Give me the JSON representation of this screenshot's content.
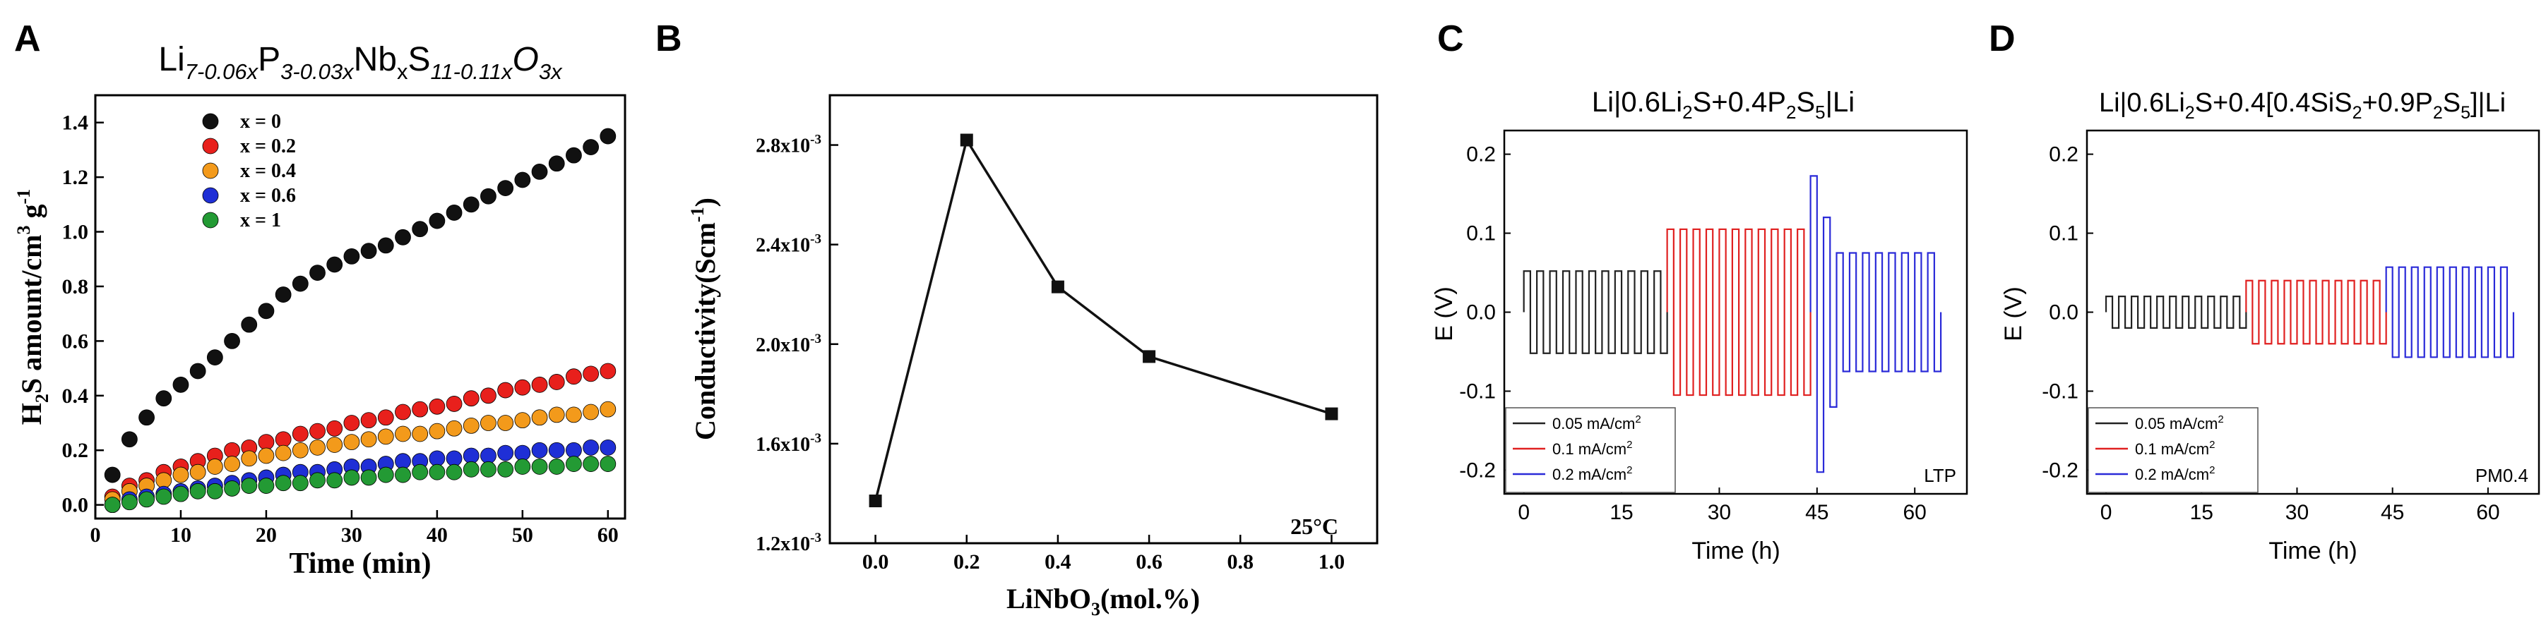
{
  "figure": {
    "panel_labels": [
      "A",
      "B",
      "C",
      "D"
    ]
  },
  "chart_data": [
    {
      "panel": "A",
      "type": "scatter",
      "title_parts": [
        {
          "text": "Li",
          "style": "normal"
        },
        {
          "text": "7-0.06x",
          "style": "sub-italic"
        },
        {
          "text": "P",
          "style": "normal"
        },
        {
          "text": "3-0.03x",
          "style": "sub-italic"
        },
        {
          "text": "Nb",
          "style": "normal"
        },
        {
          "text": "x",
          "style": "sub"
        },
        {
          "text": "S",
          "style": "normal"
        },
        {
          "text": "11-0.11x",
          "style": "sub-italic"
        },
        {
          "text": "O",
          "style": "italic"
        },
        {
          "text": "3x",
          "style": "sub-italic"
        }
      ],
      "xlabel": "Time (min)",
      "ylabel_parts": [
        {
          "text": "H",
          "style": "normal"
        },
        {
          "text": "2",
          "style": "sub"
        },
        {
          "text": "S amount/cm",
          "style": "normal"
        },
        {
          "text": "3",
          "style": "sup"
        },
        {
          "text": " g",
          "style": "normal"
        },
        {
          "text": "-1",
          "style": "sup"
        }
      ],
      "xlim": [
        0,
        62
      ],
      "ylim": [
        -0.05,
        1.5
      ],
      "xticks": [
        0,
        10,
        20,
        30,
        40,
        50,
        60
      ],
      "yticks": [
        0.0,
        0.2,
        0.4,
        0.6,
        0.8,
        1.0,
        1.2,
        1.4
      ],
      "ytick_labels": [
        "0.0",
        "0.2",
        "0.4",
        "0.6",
        "0.8",
        "1.0",
        "1.2",
        "1.4"
      ],
      "legend": "top-left",
      "x": [
        2,
        4,
        6,
        8,
        10,
        12,
        14,
        16,
        18,
        20,
        22,
        24,
        26,
        28,
        30,
        32,
        34,
        36,
        38,
        40,
        42,
        44,
        46,
        48,
        50,
        52,
        54,
        56,
        58,
        60
      ],
      "series": [
        {
          "name": "x = 0",
          "color": "#111111",
          "values": [
            0.11,
            0.24,
            0.32,
            0.39,
            0.44,
            0.49,
            0.54,
            0.6,
            0.66,
            0.71,
            0.77,
            0.81,
            0.85,
            0.88,
            0.91,
            0.93,
            0.95,
            0.98,
            1.01,
            1.04,
            1.07,
            1.1,
            1.13,
            1.16,
            1.19,
            1.22,
            1.25,
            1.28,
            1.31,
            1.35
          ]
        },
        {
          "name": "x = 0.2",
          "color": "#e8201c",
          "values": [
            0.03,
            0.07,
            0.09,
            0.12,
            0.14,
            0.16,
            0.18,
            0.2,
            0.21,
            0.23,
            0.24,
            0.26,
            0.27,
            0.28,
            0.3,
            0.31,
            0.32,
            0.34,
            0.35,
            0.36,
            0.37,
            0.39,
            0.4,
            0.42,
            0.43,
            0.44,
            0.45,
            0.47,
            0.48,
            0.49
          ]
        },
        {
          "name": "x = 0.4",
          "color": "#f39a1b",
          "values": [
            0.02,
            0.05,
            0.07,
            0.09,
            0.11,
            0.12,
            0.14,
            0.15,
            0.17,
            0.18,
            0.19,
            0.2,
            0.21,
            0.22,
            0.23,
            0.24,
            0.25,
            0.26,
            0.26,
            0.27,
            0.28,
            0.29,
            0.3,
            0.3,
            0.31,
            0.32,
            0.33,
            0.33,
            0.34,
            0.35
          ]
        },
        {
          "name": "x = 0.6",
          "color": "#1f2fd6",
          "values": [
            0.0,
            0.02,
            0.03,
            0.04,
            0.05,
            0.06,
            0.07,
            0.08,
            0.09,
            0.1,
            0.11,
            0.12,
            0.12,
            0.13,
            0.14,
            0.14,
            0.15,
            0.16,
            0.16,
            0.17,
            0.17,
            0.18,
            0.18,
            0.19,
            0.19,
            0.2,
            0.2,
            0.2,
            0.21,
            0.21
          ]
        },
        {
          "name": "x = 1",
          "color": "#239a34",
          "values": [
            0.0,
            0.01,
            0.02,
            0.03,
            0.04,
            0.05,
            0.05,
            0.06,
            0.07,
            0.07,
            0.08,
            0.08,
            0.09,
            0.09,
            0.1,
            0.1,
            0.11,
            0.11,
            0.12,
            0.12,
            0.12,
            0.13,
            0.13,
            0.13,
            0.14,
            0.14,
            0.14,
            0.15,
            0.15,
            0.15
          ]
        }
      ]
    },
    {
      "panel": "B",
      "type": "line",
      "xlabel_parts": [
        {
          "text": "LiNbO",
          "style": "normal"
        },
        {
          "text": "3",
          "style": "sub"
        },
        {
          "text": "(mol.%)",
          "style": "normal"
        }
      ],
      "ylabel_parts": [
        {
          "text": "Conductivity(Scm",
          "style": "normal"
        },
        {
          "text": "-1",
          "style": "sup"
        },
        {
          "text": ")",
          "style": "normal"
        }
      ],
      "xlim": [
        -0.1,
        1.1
      ],
      "ylim": [
        0.0012,
        0.003
      ],
      "xticks": [
        0.0,
        0.2,
        0.4,
        0.6,
        0.8,
        1.0
      ],
      "xtick_labels": [
        "0.0",
        "0.2",
        "0.4",
        "0.6",
        "0.8",
        "1.0"
      ],
      "yticks": [
        0.0012,
        0.0016,
        0.002,
        0.0024,
        0.0028
      ],
      "ytick_labels": [
        {
          "base": "1.2x10",
          "exp": "-3"
        },
        {
          "base": "1.6x10",
          "exp": "-3"
        },
        {
          "base": "2.0x10",
          "exp": "-3"
        },
        {
          "base": "2.4x10",
          "exp": "-3"
        },
        {
          "base": "2.8x10",
          "exp": "-3"
        }
      ],
      "annotation": "25°C",
      "x": [
        0.0,
        0.2,
        0.4,
        0.6,
        1.0
      ],
      "series": [
        {
          "name": "Conductivity",
          "color": "#111111",
          "values": [
            0.00137,
            0.00282,
            0.00223,
            0.00195,
            0.00172
          ]
        }
      ]
    },
    {
      "panel": "C",
      "type": "line",
      "title_parts": [
        {
          "text": "Li|0.6Li",
          "style": "normal"
        },
        {
          "text": "2",
          "style": "sub"
        },
        {
          "text": "S+0.4P",
          "style": "normal"
        },
        {
          "text": "2",
          "style": "sub"
        },
        {
          "text": "S",
          "style": "normal"
        },
        {
          "text": "5",
          "style": "sub"
        },
        {
          "text": "|Li",
          "style": "normal"
        }
      ],
      "xlabel": "Time (h)",
      "ylabel": "E (V)",
      "xlim": [
        -3,
        68
      ],
      "ylim": [
        -0.23,
        0.23
      ],
      "xticks": [
        0,
        15,
        30,
        45,
        60
      ],
      "yticks": [
        -0.2,
        -0.1,
        0.0,
        0.1,
        0.2
      ],
      "ytick_labels": [
        "-0.2",
        "-0.1",
        "0.0",
        "0.1",
        "0.2"
      ],
      "legend": "bottom-left",
      "annotation": "LTP",
      "series": [
        {
          "name": "0.05 mA/cm",
          "sup": "2",
          "color": "#222222",
          "t_start": 0.0,
          "t_end": 22.0,
          "amplitude": 0.052,
          "cycles": 11
        },
        {
          "name": "0.1 mA/cm",
          "sup": "2",
          "color": "#e02020",
          "t_start": 22.0,
          "t_end": 44.0,
          "amplitude": 0.105,
          "cycles": 11
        },
        {
          "name": "0.2 mA/cm",
          "sup": "2",
          "color": "#2a2ad8",
          "t_start": 44.0,
          "t_end": 64.0,
          "amplitude": 0.075,
          "cycles": 10
        }
      ]
    },
    {
      "panel": "D",
      "type": "line",
      "title_parts": [
        {
          "text": "Li|0.6Li",
          "style": "normal"
        },
        {
          "text": "2",
          "style": "sub"
        },
        {
          "text": "S+0.4[0.4SiS",
          "style": "normal"
        },
        {
          "text": "2",
          "style": "sub"
        },
        {
          "text": "+0.9P",
          "style": "normal"
        },
        {
          "text": "2",
          "style": "sub"
        },
        {
          "text": "S",
          "style": "normal"
        },
        {
          "text": "5",
          "style": "sub"
        },
        {
          "text": "]|Li",
          "style": "normal"
        }
      ],
      "xlabel": "Time (h)",
      "ylabel": "E (V)",
      "xlim": [
        -3,
        68
      ],
      "ylim": [
        -0.23,
        0.23
      ],
      "xticks": [
        0,
        15,
        30,
        45,
        60
      ],
      "yticks": [
        -0.2,
        -0.1,
        0.0,
        0.1,
        0.2
      ],
      "ytick_labels": [
        "-0.2",
        "-0.1",
        "0.0",
        "0.1",
        "0.2"
      ],
      "legend": "bottom-left",
      "annotation": "PM0.4",
      "series": [
        {
          "name": "0.05 mA/cm",
          "sup": "2",
          "color": "#222222",
          "t_start": 0.0,
          "t_end": 22.0,
          "amplitude": 0.02,
          "cycles": 11
        },
        {
          "name": "0.1 mA/cm",
          "sup": "2",
          "color": "#e02020",
          "t_start": 22.0,
          "t_end": 44.0,
          "amplitude": 0.04,
          "cycles": 11
        },
        {
          "name": "0.2 mA/cm",
          "sup": "2",
          "color": "#2a2ad8",
          "t_start": 44.0,
          "t_end": 64.0,
          "amplitude": 0.057,
          "cycles": 10
        }
      ]
    }
  ]
}
